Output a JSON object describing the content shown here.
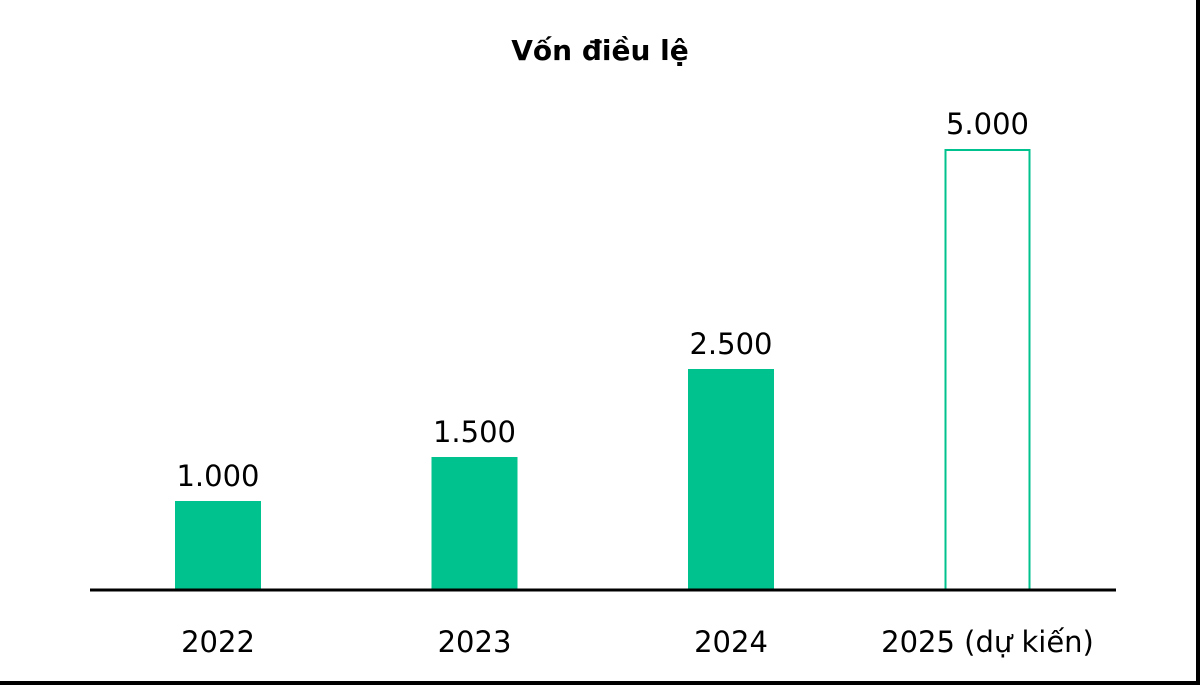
{
  "chart_data": {
    "type": "bar",
    "title": "Vốn điều lệ",
    "categories": [
      "2022",
      "2023",
      "2024",
      "2025 (dự kiến)"
    ],
    "values": [
      1000,
      1500,
      2500,
      5000
    ],
    "data_labels": [
      "1.000",
      "1.500",
      "2.500",
      "5.000"
    ],
    "bar_styles": [
      "filled",
      "filled",
      "filled",
      "outline"
    ],
    "xlabel": "",
    "ylabel": "",
    "ylim": [
      0,
      5000
    ],
    "grid": false,
    "legend": "none",
    "colors": {
      "bar": "#00c28e",
      "axis": "#000000",
      "text": "#000000"
    }
  }
}
